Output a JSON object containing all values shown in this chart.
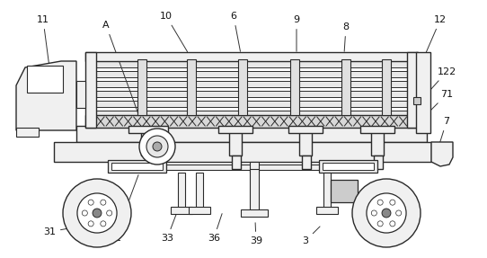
{
  "fig_width": 5.42,
  "fig_height": 2.87,
  "dpi": 100,
  "bg_color": "#ffffff",
  "line_color": "#2a2a2a",
  "lw": 1.0
}
